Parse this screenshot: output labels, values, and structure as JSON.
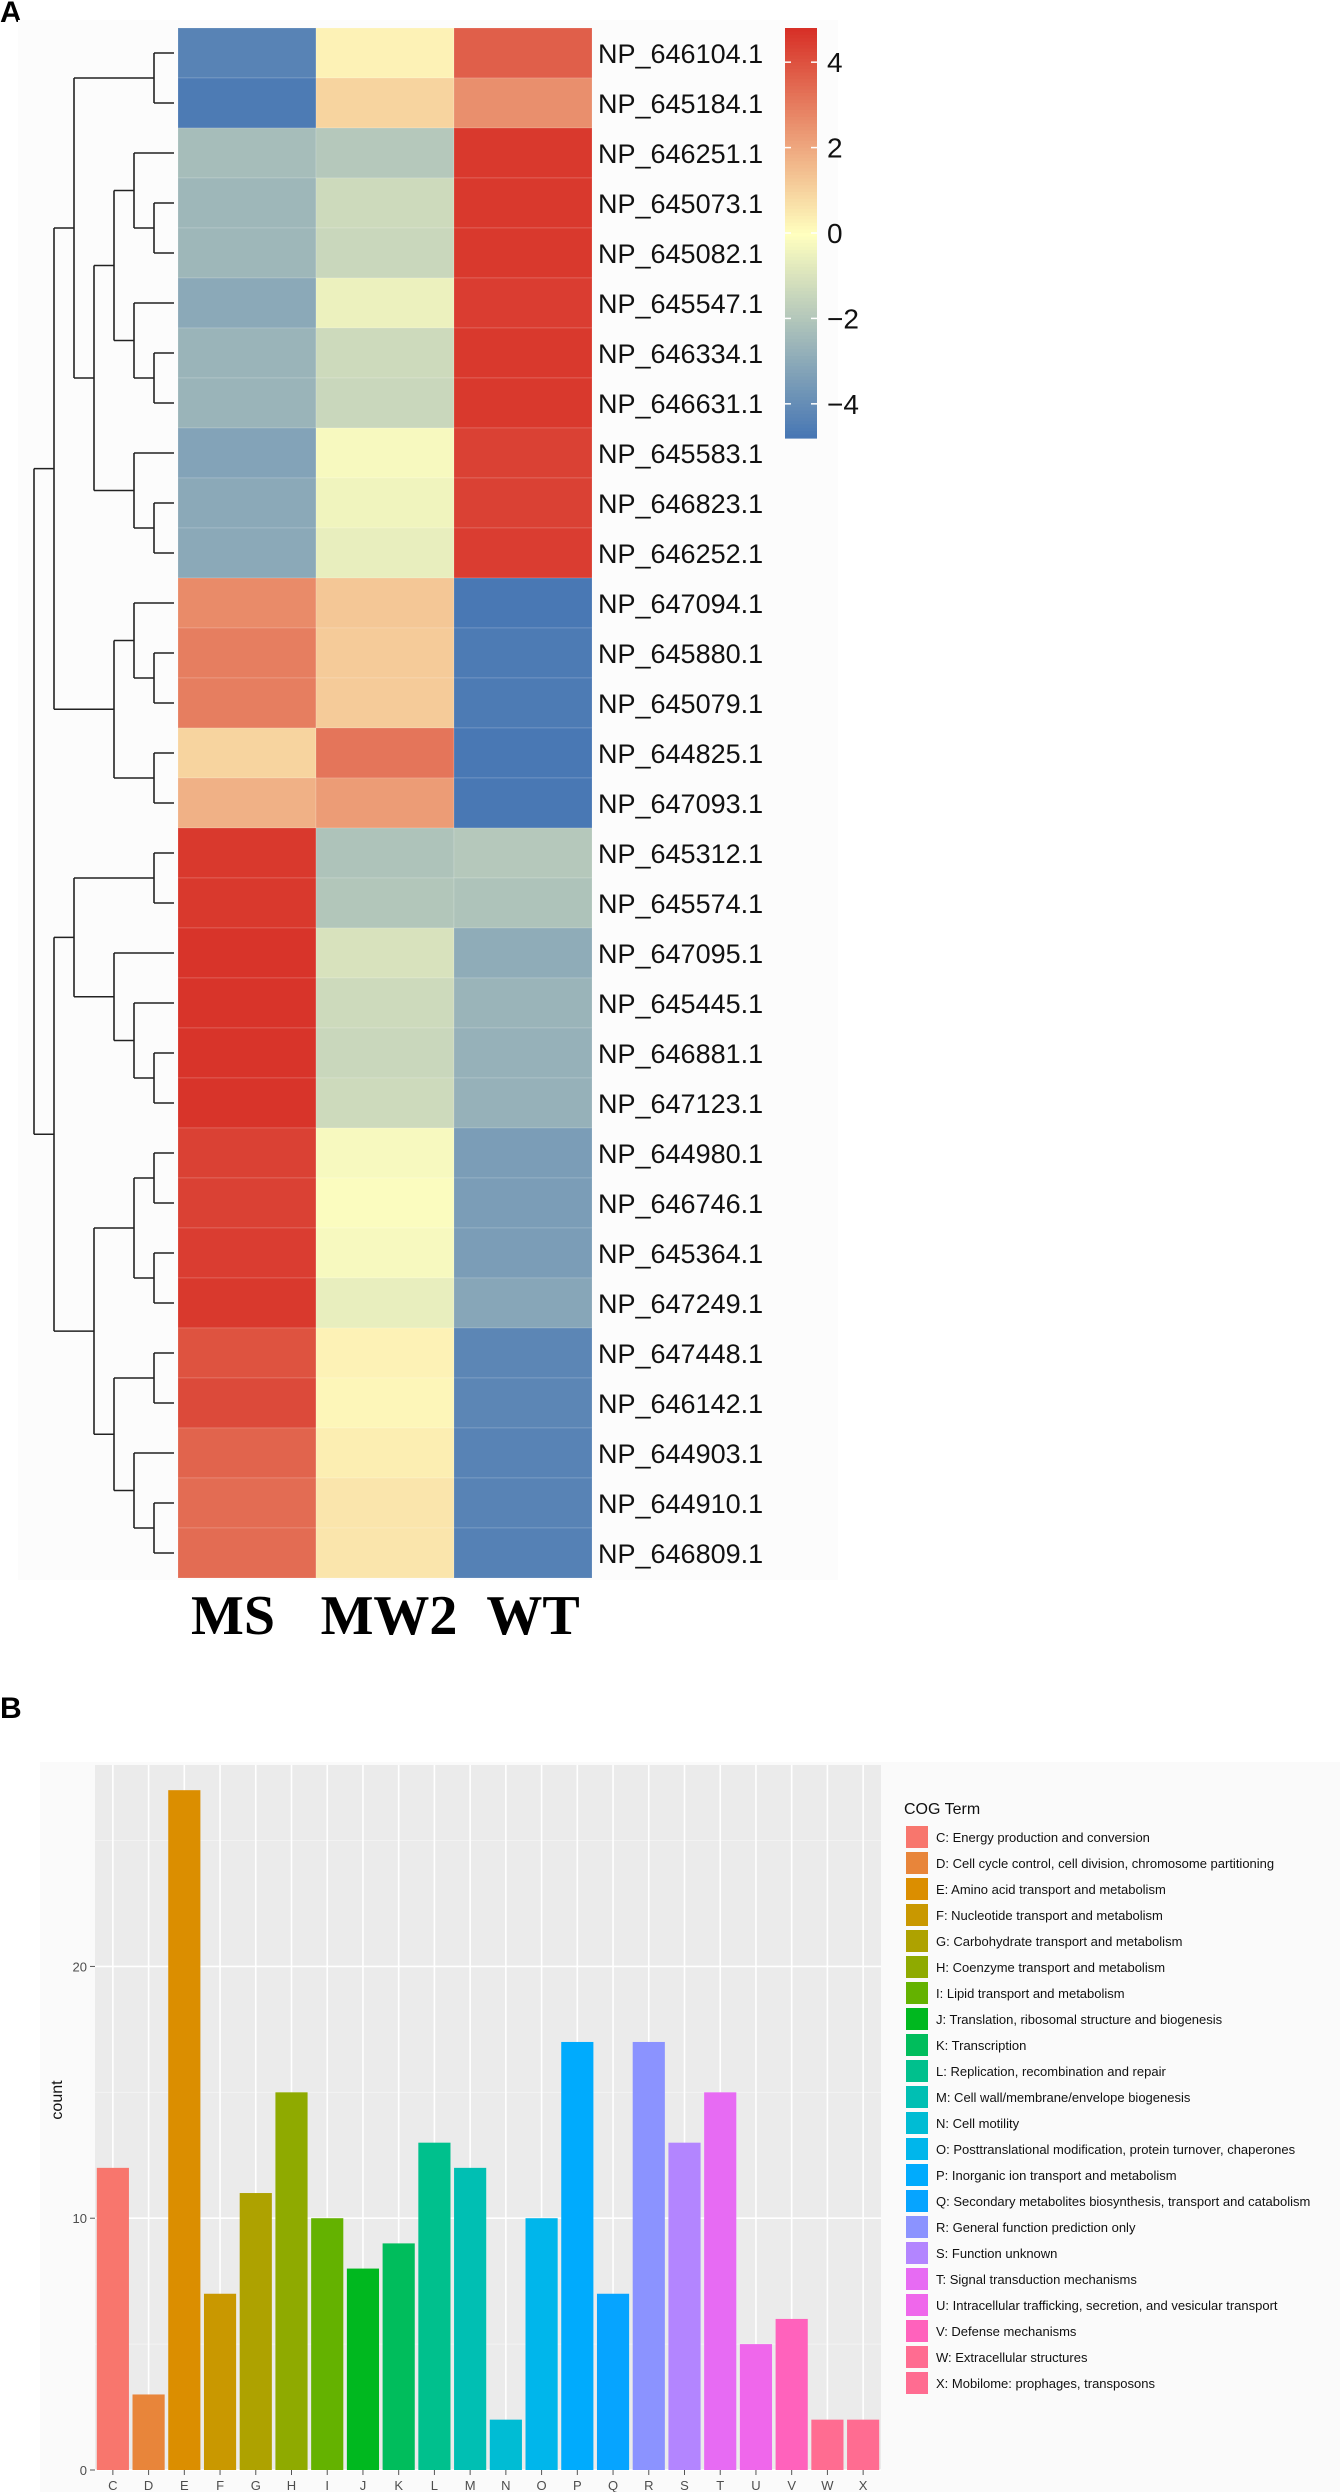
{
  "chart_data": [
    {
      "type": "heatmap",
      "panel_label": "A",
      "columns": [
        "MS",
        "MW2",
        "WT"
      ],
      "rows": [
        "NP_646104.1",
        "NP_645184.1",
        "NP_646251.1",
        "NP_645073.1",
        "NP_645082.1",
        "NP_645547.1",
        "NP_646334.1",
        "NP_646631.1",
        "NP_645583.1",
        "NP_646823.1",
        "NP_646252.1",
        "NP_647094.1",
        "NP_645880.1",
        "NP_645079.1",
        "NP_644825.1",
        "NP_647093.1",
        "NP_645312.1",
        "NP_645574.1",
        "NP_647095.1",
        "NP_645445.1",
        "NP_646881.1",
        "NP_647123.1",
        "NP_644980.1",
        "NP_646746.1",
        "NP_645364.1",
        "NP_647249.1",
        "NP_647448.1",
        "NP_646142.1",
        "NP_644903.1",
        "NP_644910.1",
        "NP_646809.1"
      ],
      "values": [
        [
          -4.3,
          0.3,
          3.7
        ],
        [
          -4.6,
          1.0,
          2.6
        ],
        [
          -2.3,
          -1.9,
          4.6
        ],
        [
          -2.5,
          -1.3,
          4.6
        ],
        [
          -2.5,
          -1.4,
          4.6
        ],
        [
          -3.0,
          -0.5,
          4.5
        ],
        [
          -2.6,
          -1.3,
          4.6
        ],
        [
          -2.6,
          -1.4,
          4.6
        ],
        [
          -3.2,
          -0.2,
          4.4
        ],
        [
          -3.0,
          -0.4,
          4.4
        ],
        [
          -3.0,
          -0.6,
          4.5
        ],
        [
          2.7,
          1.3,
          -4.7
        ],
        [
          3.0,
          1.2,
          -4.6
        ],
        [
          3.0,
          1.2,
          -4.6
        ],
        [
          1.0,
          3.2,
          -4.7
        ],
        [
          1.8,
          2.3,
          -4.7
        ],
        [
          4.6,
          -2.1,
          -1.9
        ],
        [
          4.6,
          -2.0,
          -2.1
        ],
        [
          4.7,
          -1.0,
          -2.9
        ],
        [
          4.7,
          -1.3,
          -2.6
        ],
        [
          4.7,
          -1.4,
          -2.7
        ],
        [
          4.7,
          -1.3,
          -2.7
        ],
        [
          4.4,
          -0.2,
          -3.4
        ],
        [
          4.4,
          -0.1,
          -3.4
        ],
        [
          4.5,
          -0.2,
          -3.4
        ],
        [
          4.6,
          -0.6,
          -3.1
        ],
        [
          4.0,
          0.3,
          -4.2
        ],
        [
          4.2,
          0.2,
          -4.2
        ],
        [
          3.6,
          0.4,
          -4.3
        ],
        [
          3.4,
          0.6,
          -4.3
        ],
        [
          3.4,
          0.6,
          -4.4
        ]
      ],
      "color_scale": {
        "min": -4.8,
        "max": 4.8,
        "ticks": [
          4,
          2,
          0,
          -2,
          -4
        ],
        "tick_labels": [
          "4",
          "2",
          "0",
          "−2",
          "−4"
        ],
        "low_color": "#4575b4",
        "mid_color": "#ffffbf",
        "high_color": "#d73027"
      },
      "row_dendrogram": true
    },
    {
      "type": "bar",
      "panel_label": "B",
      "categories": [
        "C",
        "D",
        "E",
        "F",
        "G",
        "H",
        "I",
        "J",
        "K",
        "L",
        "M",
        "N",
        "O",
        "P",
        "Q",
        "R",
        "S",
        "T",
        "U",
        "V",
        "W",
        "X"
      ],
      "values": [
        12,
        3,
        27,
        7,
        11,
        15,
        10,
        8,
        9,
        13,
        12,
        2,
        10,
        17,
        7,
        17,
        13,
        15,
        5,
        6,
        2,
        2
      ],
      "colors": [
        "#F8766D",
        "#E8853A",
        "#DB8E00",
        "#C99800",
        "#AEA200",
        "#8FAA00",
        "#64B200",
        "#00B81F",
        "#00BD5C",
        "#00C08D",
        "#00BFB3",
        "#00BCD4",
        "#00B6EB",
        "#00ABFD",
        "#06A4FF",
        "#8B93FF",
        "#B385FF",
        "#E76BF3",
        "#EF67EB",
        "#FF62BC",
        "#FF6C91",
        "#FF6C91"
      ],
      "ylabel": "count",
      "xlabel": "",
      "ylim": [
        0,
        28
      ],
      "yticks": [
        0,
        10,
        20
      ],
      "legend_title": "COG Term",
      "legend_position": "right",
      "legend": [
        "C: Energy production and conversion",
        "D: Cell cycle control, cell division, chromosome partitioning",
        "E: Amino acid transport and metabolism",
        "F: Nucleotide transport and metabolism",
        "G: Carbohydrate transport and metabolism",
        "H: Coenzyme transport and metabolism",
        "I: Lipid transport and metabolism",
        "J: Translation, ribosomal structure and biogenesis",
        "K: Transcription",
        "L: Replication, recombination and repair",
        "M: Cell wall/membrane/envelope biogenesis",
        "N: Cell motility",
        "O: Posttranslational modification, protein turnover, chaperones",
        "P: Inorganic ion transport and metabolism",
        "Q: Secondary metabolites biosynthesis, transport and catabolism",
        "R: General function prediction only",
        "S: Function unknown",
        "T: Signal transduction mechanisms",
        "U: Intracellular trafficking, secretion, and vesicular transport",
        "V: Defense mechanisms",
        "W: Extracellular structures",
        "X: Mobilome: prophages, transposons"
      ],
      "grid": true
    }
  ]
}
